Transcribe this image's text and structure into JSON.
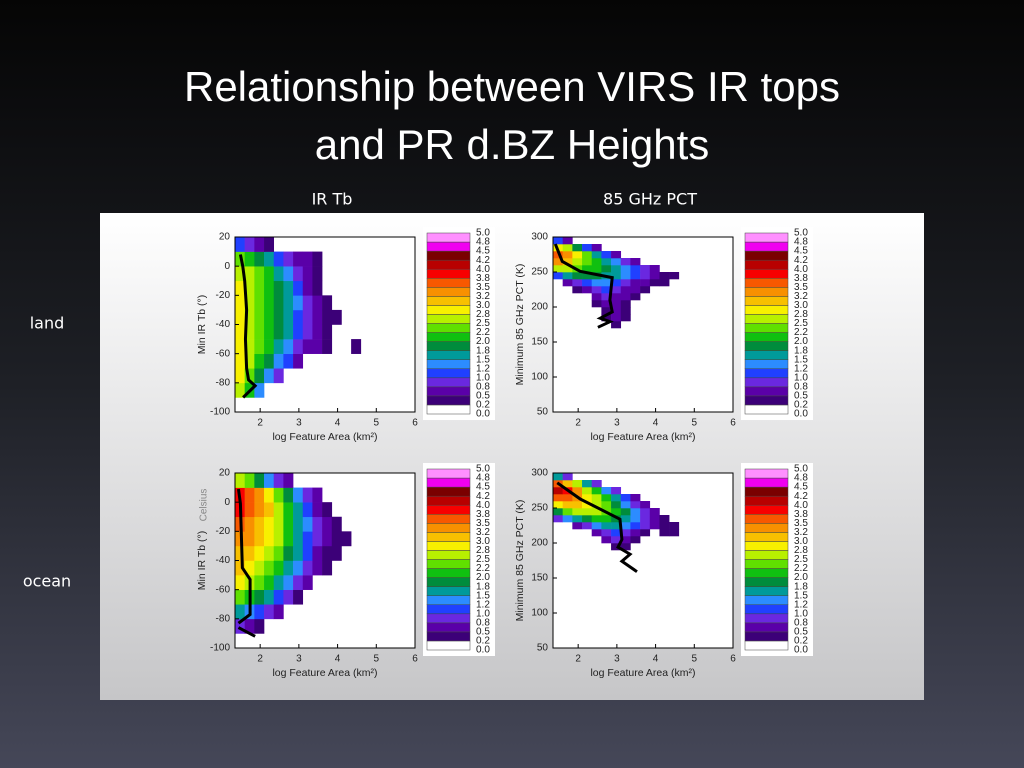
{
  "title": [
    "Relationship between VIRS IR tops",
    "and PR d.BZ Heights"
  ],
  "column_labels": [
    "IR Tb",
    "85 GHz PCT"
  ],
  "row_labels": [
    "land",
    "ocean"
  ],
  "annotation": "Celsius",
  "colorbar": {
    "ticks": [
      {
        "value": 0,
        "label": "0.0"
      },
      0.2,
      0.5,
      0.8,
      {
        "value": 1,
        "label": "1.0"
      },
      1.2,
      1.5,
      1.8,
      {
        "value": 2,
        "label": "2.0"
      },
      2.2,
      2.5,
      2.8,
      {
        "value": 3,
        "label": "3.0"
      },
      3.2,
      3.5,
      3.8,
      {
        "value": 4,
        "label": "4.0"
      },
      4.2,
      4.5,
      4.8,
      {
        "value": 5,
        "label": "5.0"
      }
    ],
    "colors": [
      "#ffffff",
      "#3c0078",
      "#5a00a8",
      "#6a28e0",
      "#2040ff",
      "#2c8cff",
      "#009a9a",
      "#008c3c",
      "#10c010",
      "#60e000",
      "#b8f000",
      "#f8f000",
      "#f8c000",
      "#f89000",
      "#f85800",
      "#f80000",
      "#b80000",
      "#7a0000",
      "#f000f0",
      "#ff90ff"
    ]
  },
  "chart_data": [
    {
      "type": "heatmap",
      "x_label": "log Feature Area (km²)",
      "y_label": "Min IR Tb (°)",
      "xlim": [
        1.35,
        6
      ],
      "ylim": [
        -100,
        20
      ],
      "xticks": [
        2,
        3,
        4,
        5,
        6
      ],
      "yticks": [
        20,
        0,
        -20,
        -40,
        -60,
        -80,
        -100
      ],
      "x_bins": [
        1.35,
        1.6,
        1.85,
        2.1,
        2.35,
        2.6,
        2.85,
        3.1,
        3.35,
        3.6,
        3.85,
        4.1,
        4.35,
        4.6
      ],
      "y_bins": [
        -90,
        -80,
        -70,
        -60,
        -50,
        -40,
        -30,
        -20,
        -10,
        0,
        10,
        20
      ],
      "values": [
        [
          2.5,
          2.0,
          1.2,
          null,
          null,
          null,
          null,
          null,
          null,
          null,
          null,
          null,
          null
        ],
        [
          2.8,
          2.2,
          1.8,
          1.2,
          0.8,
          null,
          null,
          null,
          null,
          null,
          null,
          null,
          null
        ],
        [
          2.8,
          2.5,
          2.0,
          1.8,
          1.2,
          1.0,
          0.5,
          null,
          null,
          null,
          null,
          null,
          null
        ],
        [
          2.8,
          2.5,
          2.2,
          2.0,
          1.5,
          1.2,
          0.8,
          0.5,
          0.5,
          0.3,
          null,
          null,
          0.2
        ],
        [
          2.8,
          2.5,
          2.2,
          2.0,
          1.8,
          1.5,
          1.0,
          0.8,
          0.5,
          0.3,
          null,
          null,
          null
        ],
        [
          2.8,
          2.5,
          2.2,
          2.0,
          1.8,
          1.5,
          1.0,
          0.8,
          0.5,
          0.3,
          0.2,
          null,
          null
        ],
        [
          2.8,
          2.5,
          2.2,
          2.0,
          1.8,
          1.5,
          1.2,
          0.8,
          0.5,
          0.3,
          null,
          null,
          null
        ],
        [
          2.8,
          2.5,
          2.2,
          2.0,
          1.8,
          1.5,
          1.0,
          0.6,
          0.3,
          null,
          null,
          null,
          null
        ],
        [
          2.5,
          2.5,
          2.2,
          2.0,
          1.5,
          1.2,
          0.8,
          0.5,
          0.3,
          null,
          null,
          null,
          null
        ],
        [
          2.2,
          2.0,
          1.8,
          1.5,
          1.0,
          0.8,
          0.5,
          0.5,
          0.3,
          null,
          null,
          null,
          null
        ],
        [
          1.0,
          0.8,
          0.6,
          0.3,
          null,
          null,
          null,
          null,
          null,
          null,
          null,
          null,
          null
        ]
      ],
      "line": {
        "color": "#000000",
        "x": [
          1.49,
          1.55,
          1.6,
          1.65,
          1.62,
          1.65,
          1.7,
          1.87,
          1.56
        ],
        "y": [
          8,
          0,
          -10,
          -30,
          -50,
          -70,
          -78,
          -82,
          -90
        ]
      }
    },
    {
      "type": "heatmap",
      "x_label": "log Feature Area (km²)",
      "y_label": "Minimum 85 GHz PCT (K)",
      "xlim": [
        1.35,
        6
      ],
      "ylim": [
        50,
        300
      ],
      "xticks": [
        2,
        3,
        4,
        5,
        6
      ],
      "yticks": [
        300,
        250,
        200,
        150,
        100,
        50
      ],
      "x_bins": [
        1.35,
        1.6,
        1.85,
        2.1,
        2.35,
        2.6,
        2.85,
        3.1,
        3.35,
        3.6,
        3.85,
        4.1,
        4.35,
        4.6
      ],
      "y_bins": [
        170,
        180,
        190,
        200,
        210,
        220,
        230,
        240,
        250,
        260,
        270,
        280,
        290,
        300
      ],
      "values": [
        [
          null,
          null,
          null,
          null,
          null,
          null,
          0.3,
          null,
          null,
          null,
          null,
          null,
          null
        ],
        [
          null,
          null,
          null,
          null,
          null,
          0.3,
          0.5,
          0.3,
          null,
          null,
          null,
          null,
          null
        ],
        [
          null,
          null,
          null,
          null,
          null,
          0.3,
          0.5,
          0.3,
          null,
          null,
          null,
          null,
          null
        ],
        [
          null,
          null,
          null,
          null,
          0.3,
          0.5,
          0.5,
          0.3,
          null,
          null,
          null,
          null,
          null
        ],
        [
          null,
          null,
          null,
          null,
          0.5,
          0.8,
          0.5,
          0.5,
          0.3,
          null,
          null,
          null,
          null
        ],
        [
          null,
          null,
          0.3,
          0.5,
          0.8,
          1.0,
          0.8,
          0.5,
          0.5,
          0.3,
          null,
          null,
          null
        ],
        [
          null,
          0.5,
          0.8,
          1.0,
          1.2,
          1.2,
          1.0,
          0.8,
          0.5,
          0.5,
          0.3,
          0.3,
          null
        ],
        [
          1.0,
          1.5,
          1.8,
          1.8,
          1.8,
          1.5,
          1.5,
          1.2,
          1.0,
          0.8,
          0.5,
          0.3,
          0.3
        ],
        [
          2.5,
          2.5,
          2.2,
          2.0,
          2.0,
          1.8,
          1.5,
          1.2,
          1.0,
          0.8,
          0.5,
          null,
          null
        ],
        [
          3.2,
          3.0,
          2.5,
          2.2,
          2.0,
          1.5,
          1.2,
          0.8,
          0.5,
          null,
          null,
          null,
          null
        ],
        [
          3.5,
          3.2,
          2.8,
          2.2,
          1.5,
          1.0,
          0.5,
          null,
          null,
          null,
          null,
          null,
          null
        ],
        [
          2.8,
          2.5,
          1.8,
          1.0,
          0.5,
          null,
          null,
          null,
          null,
          null,
          null,
          null,
          null
        ],
        [
          1.0,
          0.5,
          null,
          null,
          null,
          null,
          null,
          null,
          null,
          null,
          null,
          null,
          null
        ]
      ],
      "line": {
        "color": "#000000",
        "x": [
          1.41,
          1.59,
          2.05,
          2.88,
          2.82,
          2.88,
          2.57,
          2.82,
          2.51
        ],
        "y": [
          290,
          265,
          251,
          242,
          210,
          193,
          184,
          179,
          171
        ]
      }
    },
    {
      "type": "heatmap",
      "x_label": "log Feature Area (km²)",
      "y_label": "Min IR Tb (°)",
      "xlim": [
        1.35,
        6
      ],
      "ylim": [
        -100,
        20
      ],
      "xticks": [
        2,
        3,
        4,
        5,
        6
      ],
      "yticks": [
        20,
        0,
        -20,
        -40,
        -60,
        -80,
        -100
      ],
      "x_bins": [
        1.35,
        1.6,
        1.85,
        2.1,
        2.35,
        2.6,
        2.85,
        3.1,
        3.35,
        3.6,
        3.85,
        4.1,
        4.35,
        4.6
      ],
      "y_bins": [
        -90,
        -80,
        -70,
        -60,
        -50,
        -40,
        -30,
        -20,
        -10,
        0,
        10,
        20
      ],
      "values": [
        [
          0.8,
          0.6,
          0.3,
          null,
          null,
          null,
          null,
          null,
          null,
          null,
          null,
          null,
          null
        ],
        [
          1.5,
          1.2,
          1.0,
          0.8,
          0.5,
          null,
          null,
          null,
          null,
          null,
          null,
          null,
          null
        ],
        [
          2.2,
          2.0,
          1.8,
          1.5,
          1.0,
          0.8,
          0.3,
          null,
          null,
          null,
          null,
          null,
          null
        ],
        [
          2.8,
          2.5,
          2.2,
          2.0,
          1.5,
          1.2,
          0.8,
          0.5,
          null,
          null,
          null,
          null,
          null
        ],
        [
          3.0,
          2.8,
          2.5,
          2.2,
          2.0,
          1.5,
          1.2,
          0.8,
          0.5,
          0.3,
          null,
          null,
          null
        ],
        [
          3.0,
          3.0,
          2.8,
          2.5,
          2.2,
          1.8,
          1.5,
          1.0,
          0.5,
          0.3,
          0.2,
          null,
          null
        ],
        [
          3.2,
          3.2,
          3.0,
          2.8,
          2.5,
          2.0,
          1.5,
          1.0,
          0.8,
          0.5,
          0.3,
          0.2,
          null
        ],
        [
          3.5,
          3.2,
          3.0,
          2.8,
          2.5,
          2.0,
          1.5,
          1.2,
          0.8,
          0.5,
          0.3,
          null,
          null
        ],
        [
          3.8,
          3.5,
          3.2,
          3.0,
          2.5,
          2.0,
          1.5,
          1.0,
          0.6,
          0.3,
          null,
          null,
          null
        ],
        [
          3.8,
          3.5,
          3.2,
          2.8,
          2.2,
          1.8,
          1.2,
          0.8,
          0.5,
          null,
          null,
          null,
          null
        ],
        [
          2.5,
          2.2,
          1.8,
          1.2,
          0.8,
          0.5,
          null,
          null,
          null,
          null,
          null,
          null,
          null
        ]
      ],
      "line": {
        "color": "#000000",
        "x": [
          1.44,
          1.49,
          1.54,
          1.74,
          1.74,
          1.44,
          null,
          1.44,
          1.87
        ],
        "y": [
          9,
          -1,
          -45,
          -53,
          -77,
          -83,
          null,
          -86,
          -92
        ]
      }
    },
    {
      "type": "heatmap",
      "x_label": "log Feature Area (km²)",
      "y_label": "Minimum 85 GHz PCT (K)",
      "xlim": [
        1.35,
        6
      ],
      "ylim": [
        50,
        300
      ],
      "xticks": [
        2,
        3,
        4,
        5,
        6
      ],
      "yticks": [
        300,
        250,
        200,
        150,
        100,
        50
      ],
      "x_bins": [
        1.35,
        1.6,
        1.85,
        2.1,
        2.35,
        2.6,
        2.85,
        3.1,
        3.35,
        3.6,
        3.85,
        4.1,
        4.35,
        4.6
      ],
      "y_bins": [
        190,
        200,
        210,
        220,
        230,
        240,
        250,
        260,
        270,
        280,
        290,
        300
      ],
      "values": [
        [
          null,
          null,
          null,
          null,
          null,
          null,
          0.3,
          0.3,
          null,
          null,
          null,
          null,
          null
        ],
        [
          null,
          null,
          null,
          null,
          null,
          0.5,
          0.8,
          0.5,
          0.3,
          null,
          null,
          null,
          null
        ],
        [
          null,
          null,
          null,
          null,
          0.5,
          0.8,
          1.0,
          0.8,
          0.5,
          0.3,
          null,
          0.3,
          0.2
        ],
        [
          null,
          null,
          0.5,
          0.8,
          1.2,
          1.5,
          1.5,
          1.2,
          1.0,
          0.8,
          0.5,
          0.3,
          0.3
        ],
        [
          0.8,
          1.2,
          1.5,
          1.8,
          2.0,
          2.0,
          1.8,
          1.5,
          1.2,
          0.8,
          0.5,
          0.3,
          null
        ],
        [
          1.8,
          2.2,
          2.5,
          2.5,
          2.5,
          2.2,
          2.0,
          1.8,
          1.2,
          0.8,
          0.5,
          null,
          null
        ],
        [
          2.8,
          3.0,
          3.0,
          2.8,
          2.5,
          2.2,
          1.8,
          1.2,
          0.8,
          0.5,
          null,
          null,
          null
        ],
        [
          3.5,
          3.5,
          3.2,
          2.8,
          2.5,
          2.0,
          1.5,
          1.0,
          0.5,
          null,
          null,
          null,
          null
        ],
        [
          4.0,
          3.8,
          3.2,
          2.5,
          2.0,
          1.2,
          0.8,
          null,
          null,
          null,
          null,
          null,
          null
        ],
        [
          3.5,
          3.0,
          2.5,
          1.5,
          0.8,
          null,
          null,
          null,
          null,
          null,
          null,
          null,
          null
        ],
        [
          1.5,
          0.8,
          null,
          null,
          null,
          null,
          null,
          null,
          null,
          null,
          null,
          null,
          null
        ]
      ],
      "line": {
        "color": "#000000",
        "x": [
          1.46,
          2.05,
          3.08,
          3.13,
          3.03,
          3.34,
          3.13,
          3.52
        ],
        "y": [
          286,
          263,
          234,
          205,
          194,
          184,
          174,
          159
        ]
      }
    }
  ]
}
